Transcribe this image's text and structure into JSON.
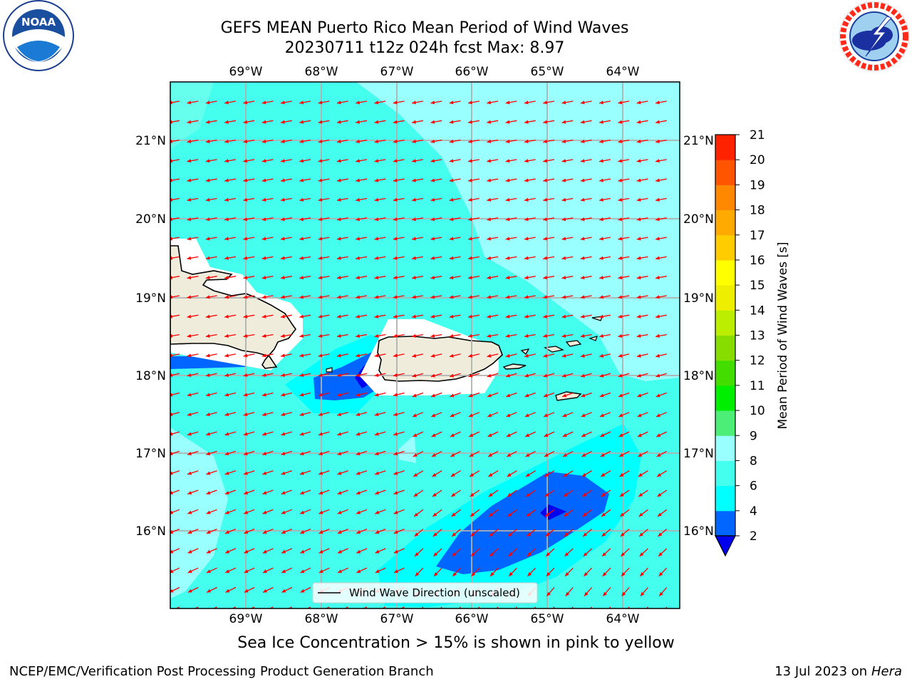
{
  "title_line1": "GEFS MEAN Puerto Rico Mean Period of Wind Waves",
  "title_line2": "20230711 t12z 024h fcst   Max: 8.97",
  "lon_labels": [
    "69°W",
    "68°W",
    "67°W",
    "66°W",
    "65°W",
    "64°W"
  ],
  "lat_labels": [
    "21°N",
    "20°N",
    "19°N",
    "18°N",
    "17°N",
    "16°N"
  ],
  "legend_label": "Wind Wave Direction (unscaled)",
  "colorbar": {
    "label": "Mean Period of Wind Waves [s]",
    "ticks": [
      "2",
      "4",
      "6",
      "8",
      "9",
      "10",
      "11",
      "12",
      "13",
      "14",
      "15",
      "16",
      "17",
      "18",
      "19",
      "20",
      "21"
    ],
    "colors": [
      "#0066ff",
      "#00ffff",
      "#44ffee",
      "#99ffff",
      "#4dee77",
      "#00ee00",
      "#44dd00",
      "#88dd00",
      "#bbee00",
      "#eeee00",
      "#ffff00",
      "#ffcc00",
      "#ffaa00",
      "#ff8800",
      "#ff5500",
      "#ff2200",
      "#ff0000"
    ],
    "under_color": "#0000ee"
  },
  "colors": {
    "sea_light": "#99ffff",
    "sea_mid": "#44ffee",
    "sea_cyan": "#00ffff",
    "sea_blue": "#0066ff",
    "sea_dark": "#0000ee",
    "land": "#efecdc",
    "arrow": "#ff0000",
    "grid": "#b0b0b0"
  },
  "wave_direction": "toward west-southwest",
  "note": "Sea Ice Concentration > 15% is shown in pink to yellow",
  "footer_left": "NCEP/EMC/Verification Post Processing Product Generation Branch",
  "footer_date": "13 Jul 2023 on",
  "footer_host": "Hera",
  "logos": {
    "noaa_text": "NOAA",
    "noaa_ring": "NATIONAL OCEANIC AND ATMOSPHERIC ADMINISTRATION",
    "nws_ring": "NATIONAL WEATHER SERVICE"
  }
}
